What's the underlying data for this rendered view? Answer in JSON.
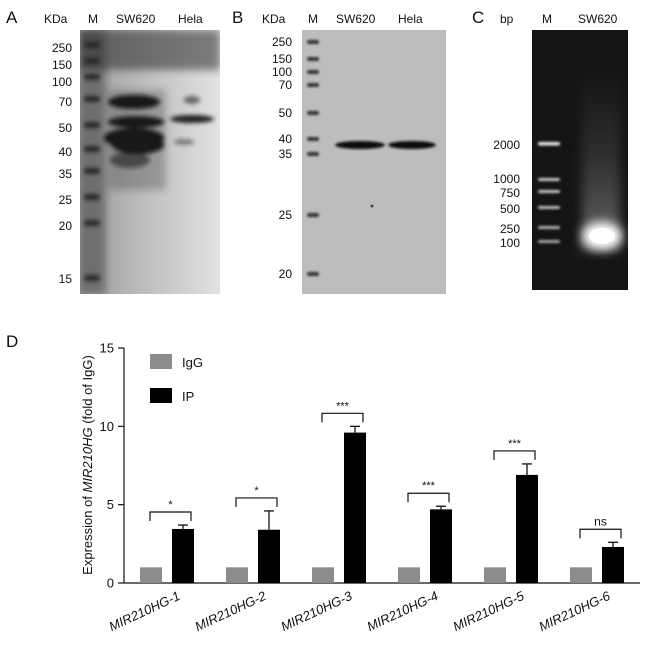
{
  "panels": {
    "A": {
      "letter": "A",
      "unit_label": "KDa",
      "lanes": [
        "M",
        "SW620",
        "Hela"
      ],
      "markers": [
        "250",
        "150",
        "100",
        "70",
        "50",
        "40",
        "35",
        "25",
        "20",
        "15"
      ]
    },
    "B": {
      "letter": "B",
      "unit_label": "KDa",
      "lanes": [
        "M",
        "SW620",
        "Hela"
      ],
      "markers": [
        "250",
        "150",
        "100",
        "70",
        "50",
        "40",
        "35",
        "25",
        "20"
      ]
    },
    "C": {
      "letter": "C",
      "unit_label": "bp",
      "lanes": [
        "M",
        "SW620"
      ],
      "markers": [
        "2000",
        "1000",
        "750",
        "500",
        "250",
        "100"
      ]
    },
    "D": {
      "letter": "D"
    }
  },
  "chart_data": {
    "type": "bar",
    "categories": [
      "MIR210HG-1",
      "MIR210HG-2",
      "MIR210HG-3",
      "MIR210HG-4",
      "MIR210HG-5",
      "MIR210HG-6"
    ],
    "series": [
      {
        "name": "IgG",
        "values": [
          1,
          1,
          1,
          1,
          1,
          1
        ],
        "errors": [
          0,
          0,
          0,
          0,
          0,
          0
        ],
        "color": "#8c8c8c"
      },
      {
        "name": "IP",
        "values": [
          3.45,
          3.4,
          9.6,
          4.7,
          6.9,
          2.3
        ],
        "errors": [
          0.25,
          1.2,
          0.4,
          0.2,
          0.7,
          0.3
        ],
        "color": "#000000"
      }
    ],
    "significance": [
      "*",
      "*",
      "***",
      "***",
      "***",
      "ns"
    ],
    "ylabel_prefix": "Expression of ",
    "ylabel_italic": "MIR210HG",
    "ylabel_suffix": " (fold of IgG)",
    "ylim": [
      0,
      15
    ],
    "yticks": [
      "0",
      "5",
      "10",
      "15"
    ],
    "legend_position": "top-left"
  }
}
